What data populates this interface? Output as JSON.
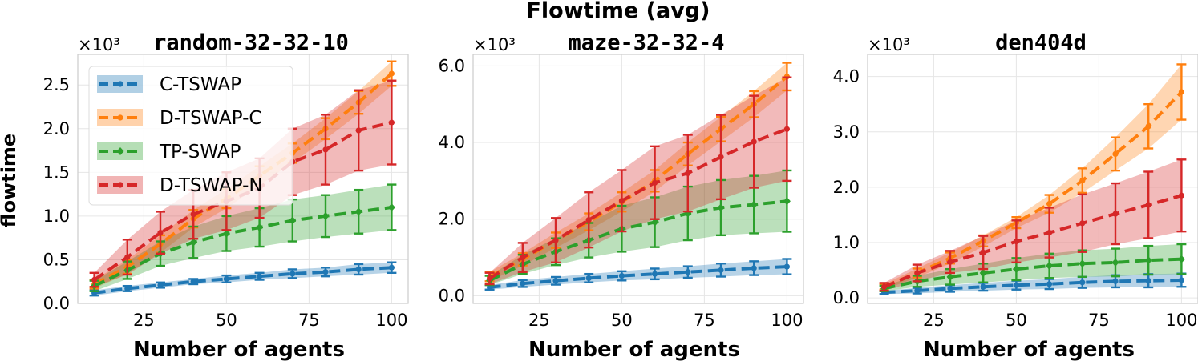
{
  "suptitle": "Flowtime (avg)",
  "colors": {
    "C-TSWAP": "#1f77b4",
    "D-TSWAP-C": "#ff7f0e",
    "TP-SWAP": "#2ca02c",
    "D-TSWAP-N": "#d62728"
  },
  "chart_data": [
    {
      "type": "line",
      "title": "random-32-32-10",
      "xlabel": "Number of agents",
      "ylabel": "flowtime",
      "y_multiplier": "×10³",
      "xlim": [
        5,
        105
      ],
      "ylim": [
        0,
        2.85
      ],
      "xticks": [
        "25",
        "50",
        "75",
        "100"
      ],
      "yticks": [
        "0.0",
        "0.5",
        "1.0",
        "1.5",
        "2.0",
        "2.5"
      ],
      "grid": true,
      "legend_location": "upper-left",
      "x": [
        10,
        20,
        30,
        40,
        50,
        60,
        70,
        80,
        90,
        100
      ],
      "series": [
        {
          "name": "C-TSWAP",
          "mean": [
            0.12,
            0.17,
            0.21,
            0.25,
            0.28,
            0.31,
            0.34,
            0.36,
            0.39,
            0.41
          ],
          "err": [
            0.03,
            0.03,
            0.03,
            0.03,
            0.04,
            0.04,
            0.05,
            0.05,
            0.06,
            0.06
          ],
          "marker": "circle"
        },
        {
          "name": "D-TSWAP-C",
          "mean": [
            0.22,
            0.42,
            0.68,
            0.97,
            1.2,
            1.46,
            1.72,
            2.0,
            2.3,
            2.63
          ],
          "err": [
            0.05,
            0.08,
            0.1,
            0.1,
            0.11,
            0.11,
            0.11,
            0.12,
            0.13,
            0.14
          ],
          "marker": "circle"
        },
        {
          "name": "TP-SWAP",
          "mean": [
            0.2,
            0.38,
            0.57,
            0.7,
            0.8,
            0.87,
            0.95,
            1.0,
            1.05,
            1.1
          ],
          "err": [
            0.06,
            0.1,
            0.14,
            0.18,
            0.2,
            0.22,
            0.24,
            0.24,
            0.25,
            0.26
          ],
          "marker": "diamond"
        },
        {
          "name": "D-TSWAP-N",
          "mean": [
            0.27,
            0.53,
            0.81,
            1.02,
            1.17,
            1.32,
            1.62,
            1.76,
            1.98,
            2.07
          ],
          "err": [
            0.08,
            0.2,
            0.24,
            0.28,
            0.33,
            0.34,
            0.38,
            0.4,
            0.46,
            0.48
          ],
          "marker": "circle"
        }
      ]
    },
    {
      "type": "line",
      "title": "maze-32-32-4",
      "xlabel": "Number of agents",
      "ylabel": "",
      "y_multiplier": "×10³",
      "xlim": [
        5,
        105
      ],
      "ylim": [
        -0.2,
        6.3
      ],
      "xticks": [
        "25",
        "50",
        "75",
        "100"
      ],
      "yticks": [
        "0.0",
        "2.0",
        "4.0",
        "6.0"
      ],
      "grid": true,
      "x": [
        10,
        20,
        30,
        40,
        50,
        60,
        70,
        80,
        90,
        100
      ],
      "series": [
        {
          "name": "C-TSWAP",
          "mean": [
            0.22,
            0.32,
            0.39,
            0.46,
            0.52,
            0.57,
            0.62,
            0.67,
            0.72,
            0.76
          ],
          "err": [
            0.06,
            0.09,
            0.1,
            0.11,
            0.12,
            0.14,
            0.15,
            0.17,
            0.18,
            0.2
          ],
          "marker": "circle"
        },
        {
          "name": "D-TSWAP-C",
          "mean": [
            0.5,
            0.95,
            1.45,
            1.93,
            2.45,
            3.0,
            3.7,
            4.35,
            5.0,
            5.72
          ],
          "err": [
            0.12,
            0.16,
            0.2,
            0.22,
            0.25,
            0.28,
            0.3,
            0.32,
            0.34,
            0.36
          ],
          "marker": "circle"
        },
        {
          "name": "TP-SWAP",
          "mean": [
            0.4,
            0.82,
            1.15,
            1.45,
            1.75,
            1.92,
            2.15,
            2.3,
            2.38,
            2.47
          ],
          "err": [
            0.12,
            0.25,
            0.35,
            0.45,
            0.6,
            0.65,
            0.7,
            0.72,
            0.75,
            0.8
          ],
          "marker": "diamond"
        },
        {
          "name": "D-TSWAP-N",
          "mean": [
            0.45,
            1.0,
            1.45,
            1.98,
            2.48,
            2.95,
            3.2,
            3.62,
            4.02,
            4.35
          ],
          "err": [
            0.15,
            0.38,
            0.58,
            0.72,
            0.8,
            0.95,
            1.0,
            1.1,
            1.2,
            1.35
          ],
          "marker": "circle"
        }
      ]
    },
    {
      "type": "line",
      "title": "den404d",
      "xlabel": "Number of agents",
      "ylabel": "",
      "y_multiplier": "×10³",
      "xlim": [
        5,
        105
      ],
      "ylim": [
        -0.1,
        4.4
      ],
      "xticks": [
        "25",
        "50",
        "75",
        "100"
      ],
      "yticks": [
        "0.0",
        "1.0",
        "2.0",
        "3.0",
        "4.0"
      ],
      "grid": true,
      "x": [
        10,
        20,
        30,
        40,
        50,
        60,
        70,
        80,
        90,
        100
      ],
      "series": [
        {
          "name": "C-TSWAP",
          "mean": [
            0.1,
            0.13,
            0.17,
            0.2,
            0.23,
            0.25,
            0.28,
            0.3,
            0.31,
            0.32
          ],
          "err": [
            0.03,
            0.05,
            0.06,
            0.07,
            0.08,
            0.09,
            0.1,
            0.11,
            0.12,
            0.12
          ],
          "marker": "circle"
        },
        {
          "name": "D-TSWAP-C",
          "mean": [
            0.2,
            0.45,
            0.72,
            1.03,
            1.36,
            1.7,
            2.12,
            2.6,
            3.1,
            3.72
          ],
          "err": [
            0.05,
            0.08,
            0.1,
            0.1,
            0.1,
            0.16,
            0.22,
            0.3,
            0.4,
            0.5
          ],
          "marker": "circle"
        },
        {
          "name": "TP-SWAP",
          "mean": [
            0.17,
            0.3,
            0.38,
            0.45,
            0.52,
            0.58,
            0.62,
            0.64,
            0.68,
            0.7
          ],
          "err": [
            0.05,
            0.1,
            0.14,
            0.17,
            0.2,
            0.22,
            0.24,
            0.25,
            0.26,
            0.27
          ],
          "marker": "diamond"
        },
        {
          "name": "D-TSWAP-N",
          "mean": [
            0.2,
            0.45,
            0.65,
            0.82,
            1.02,
            1.18,
            1.35,
            1.52,
            1.68,
            1.85
          ],
          "err": [
            0.07,
            0.15,
            0.2,
            0.3,
            0.38,
            0.45,
            0.52,
            0.55,
            0.6,
            0.65
          ],
          "marker": "circle"
        }
      ]
    }
  ]
}
